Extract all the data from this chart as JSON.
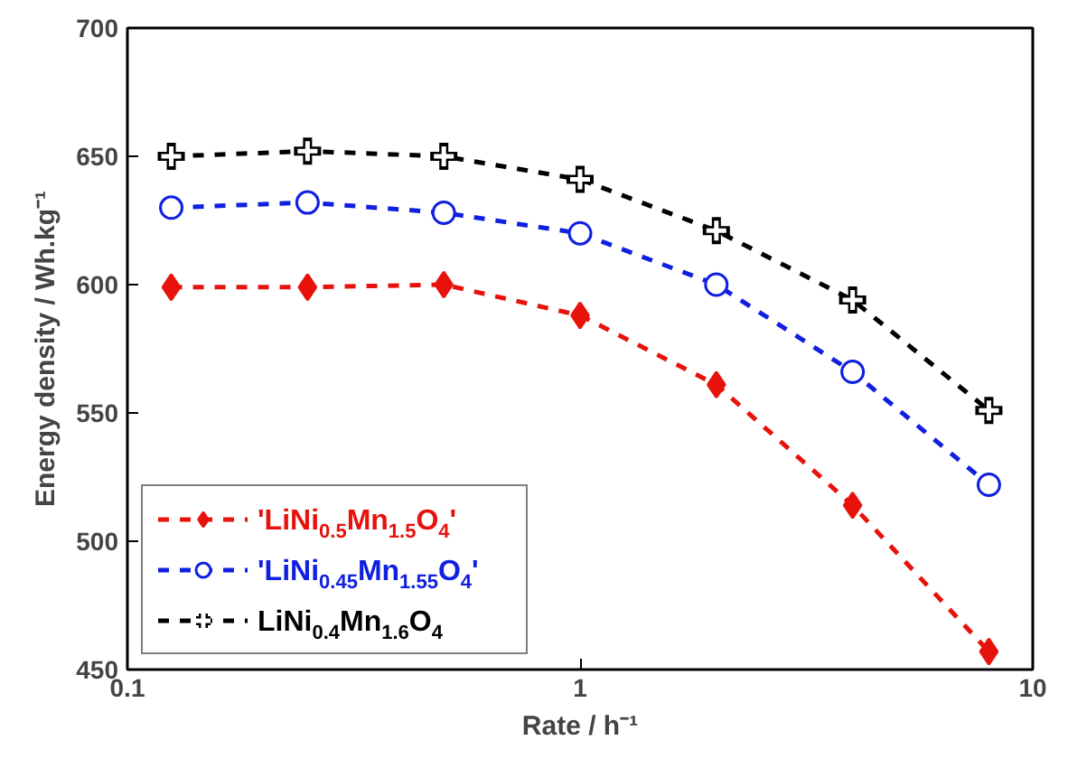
{
  "chart_data": {
    "type": "line",
    "xlabel": "Rate / h⁻¹",
    "ylabel": "Energy density / Wh.kg⁻¹",
    "log": "x",
    "xlim": [
      0.1,
      10
    ],
    "xticks": [
      0.1,
      1,
      10
    ],
    "ylim": [
      450,
      700
    ],
    "yticks": [
      450,
      500,
      550,
      600,
      650,
      700
    ],
    "grid": false,
    "legend": "bottom left",
    "line_style": "dashed",
    "x": [
      0.125,
      0.25,
      0.5,
      1,
      2,
      4,
      8
    ],
    "series": [
      {
        "name": "'LiNi$_{0.5}$Mn$_{1.5}$O$_{4}$'",
        "color": "#e8120c",
        "marker": "diamond",
        "values": [
          599,
          599,
          600,
          588,
          561,
          514,
          457
        ]
      },
      {
        "name": "'LiNi$_{0.45}$Mn$_{1.55}$O$_{4}$'",
        "color": "#1020e0",
        "marker": "circle",
        "values": [
          630,
          632,
          628,
          620,
          600,
          566,
          522
        ]
      },
      {
        "name": "LiNi$_{0.4}$Mn$_{1.6}$O$_{4}$",
        "color": "#000000",
        "marker": "cross",
        "values": [
          650,
          652,
          650,
          641,
          621,
          594,
          551
        ]
      }
    ]
  }
}
